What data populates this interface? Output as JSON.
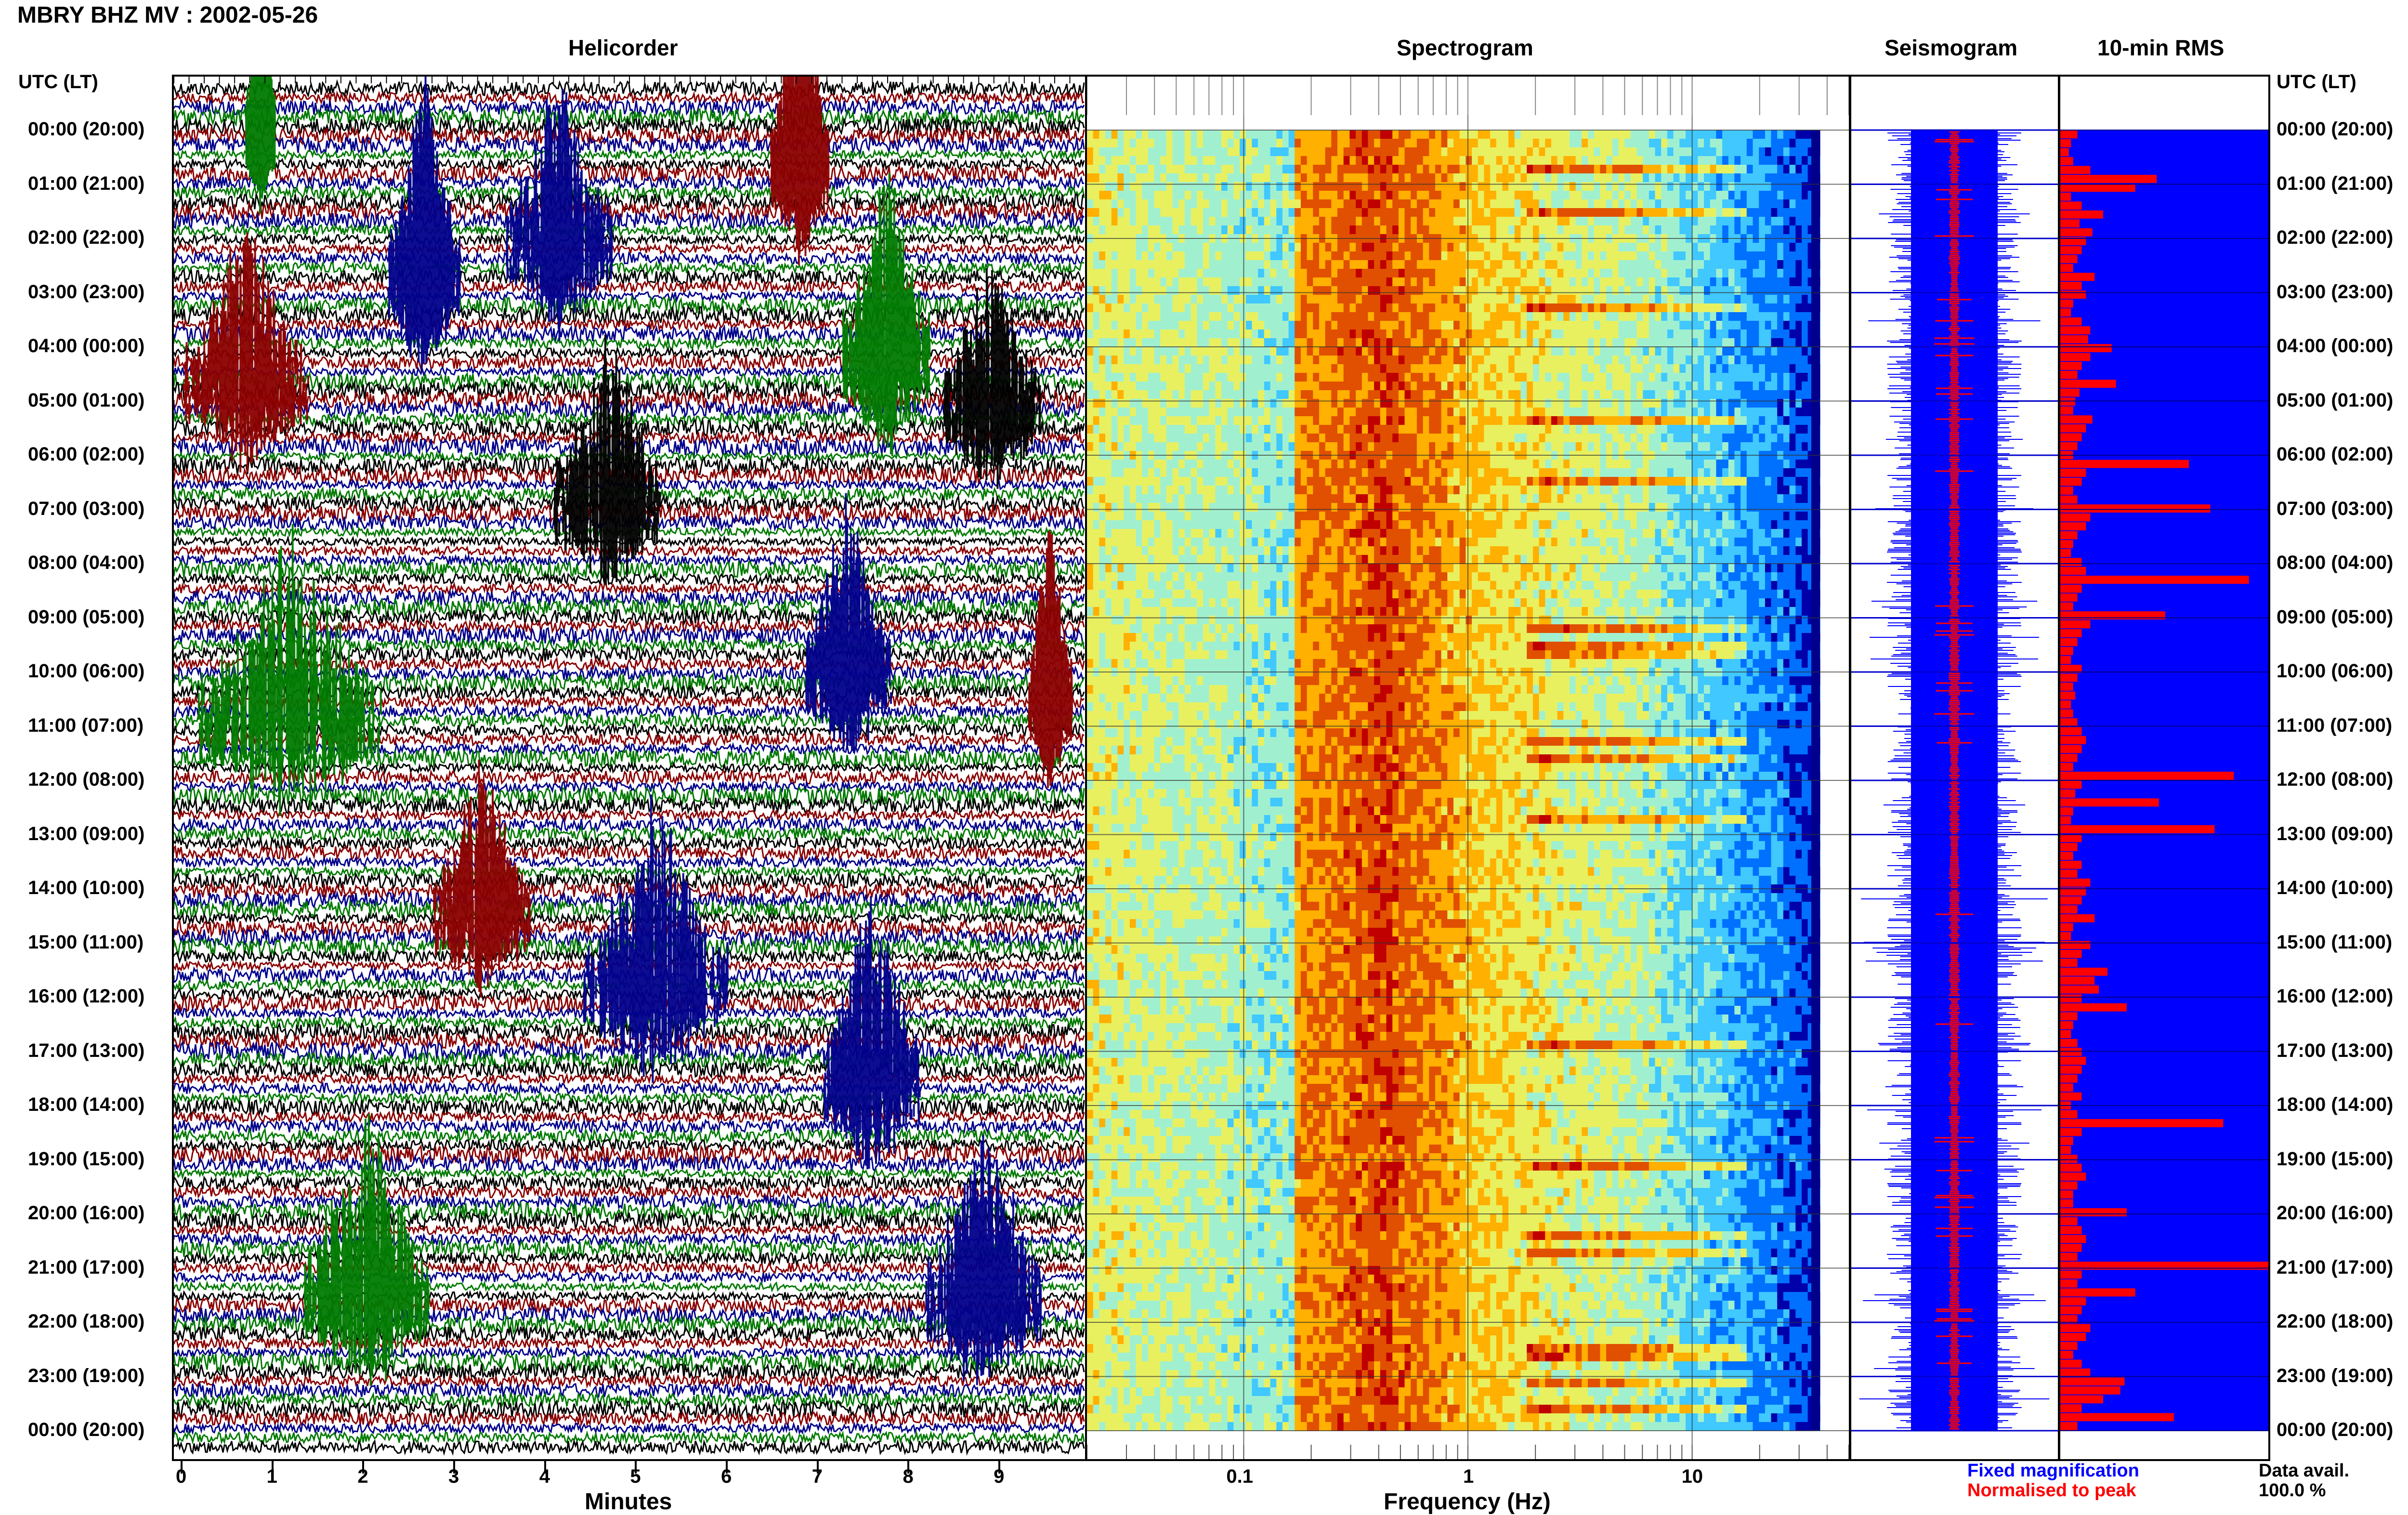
{
  "header": {
    "title": "MBRY BHZ MV : 2002-05-26"
  },
  "panels": {
    "helicorder": "Helicorder",
    "spectrogram": "Spectrogram",
    "seismogram": "Seismogram",
    "rms": "10-min RMS"
  },
  "time_axis": {
    "label": "UTC (LT)",
    "ticks": [
      "00:00 (20:00)",
      "01:00 (21:00)",
      "02:00 (22:00)",
      "03:00 (23:00)",
      "04:00 (00:00)",
      "05:00 (01:00)",
      "06:00 (02:00)",
      "07:00 (03:00)",
      "08:00 (04:00)",
      "09:00 (05:00)",
      "10:00 (06:00)",
      "11:00 (07:00)",
      "12:00 (08:00)",
      "13:00 (09:00)",
      "14:00 (10:00)",
      "15:00 (11:00)",
      "16:00 (12:00)",
      "17:00 (13:00)",
      "18:00 (14:00)",
      "19:00 (15:00)",
      "20:00 (16:00)",
      "21:00 (17:00)",
      "22:00 (18:00)",
      "23:00 (19:00)",
      "00:00 (20:00)"
    ]
  },
  "helicorder_axis": {
    "label": "Minutes",
    "ticks": [
      "0",
      "1",
      "2",
      "3",
      "4",
      "5",
      "6",
      "7",
      "8",
      "9"
    ]
  },
  "spectrogram_axis": {
    "label": "Frequency (Hz)",
    "ticks": [
      "0.1",
      "1",
      "10"
    ]
  },
  "legend": {
    "fixed": "Fixed magnification",
    "normalised": "Normalised to peak",
    "fixed_color": "#0000ff",
    "normalised_color": "#ff0000"
  },
  "availability": {
    "label": "Data avail.",
    "value": "100.0 %"
  },
  "chart_data": [
    {
      "type": "line",
      "title": "Helicorder",
      "xlabel": "Minutes",
      "xlim": [
        0,
        10
      ],
      "rows": 145,
      "colors": [
        "#000000",
        "#8b0000",
        "#00008b",
        "#007a00"
      ]
    },
    {
      "type": "heatmap",
      "title": "Spectrogram",
      "xlabel": "Frequency (Hz)",
      "xscale": "log",
      "xlim": [
        0.02,
        50
      ],
      "peak_band_hz": [
        0.2,
        0.5
      ],
      "colormap": [
        "#0000aa",
        "#0070ff",
        "#40c8ff",
        "#a0f0d0",
        "#e8f060",
        "#ffb000",
        "#e05000",
        "#c00000"
      ]
    },
    {
      "type": "bar",
      "title": "10-min RMS",
      "orientation": "horizontal",
      "series": [
        {
          "name": "Normalised to peak",
          "values": [
            0.08,
            0.05,
            0.04,
            0.06,
            0.14,
            0.45,
            0.35,
            0.05,
            0.1,
            0.2,
            0.09,
            0.15,
            0.12,
            0.1,
            0.08,
            0.06,
            0.16,
            0.1,
            0.12,
            0.06,
            0.05,
            0.1,
            0.14,
            0.13,
            0.24,
            0.14,
            0.1,
            0.08,
            0.26,
            0.09,
            0.07,
            0.06,
            0.15,
            0.12,
            0.1,
            0.08,
            0.06,
            0.6,
            0.12,
            0.1,
            0.06,
            0.08,
            0.7,
            0.14,
            0.12,
            0.08,
            0.06,
            0.05,
            0.1,
            0.12,
            0.88,
            0.1,
            0.08,
            0.06,
            0.49,
            0.14,
            0.1,
            0.08,
            0.06,
            0.05,
            0.1,
            0.08,
            0.06,
            0.07,
            0.05,
            0.06,
            0.08,
            0.1,
            0.12,
            0.1,
            0.08,
            0.06,
            0.81,
            0.1,
            0.07,
            0.46,
            0.06,
            0.05,
            0.72,
            0.1,
            0.08,
            0.06,
            0.1,
            0.08,
            0.14,
            0.12,
            0.1,
            0.08,
            0.16,
            0.06,
            0.05,
            0.14,
            0.1,
            0.08,
            0.22,
            0.16,
            0.18,
            0.1,
            0.31,
            0.08,
            0.06,
            0.05,
            0.08,
            0.1,
            0.12,
            0.1,
            0.08,
            0.06,
            0.1,
            0.05,
            0.08,
            0.76,
            0.1,
            0.06,
            0.05,
            0.08,
            0.1,
            0.12,
            0.08,
            0.06,
            0.06,
            0.31,
            0.08,
            0.1,
            0.12,
            0.1,
            0.08,
            0.99,
            0.1,
            0.08,
            0.35,
            0.12,
            0.1,
            0.08,
            0.14,
            0.12,
            0.08,
            0.06,
            0.1,
            0.14,
            0.3,
            0.28,
            0.2,
            0.1,
            0.53,
            0.08
          ]
        }
      ]
    }
  ]
}
